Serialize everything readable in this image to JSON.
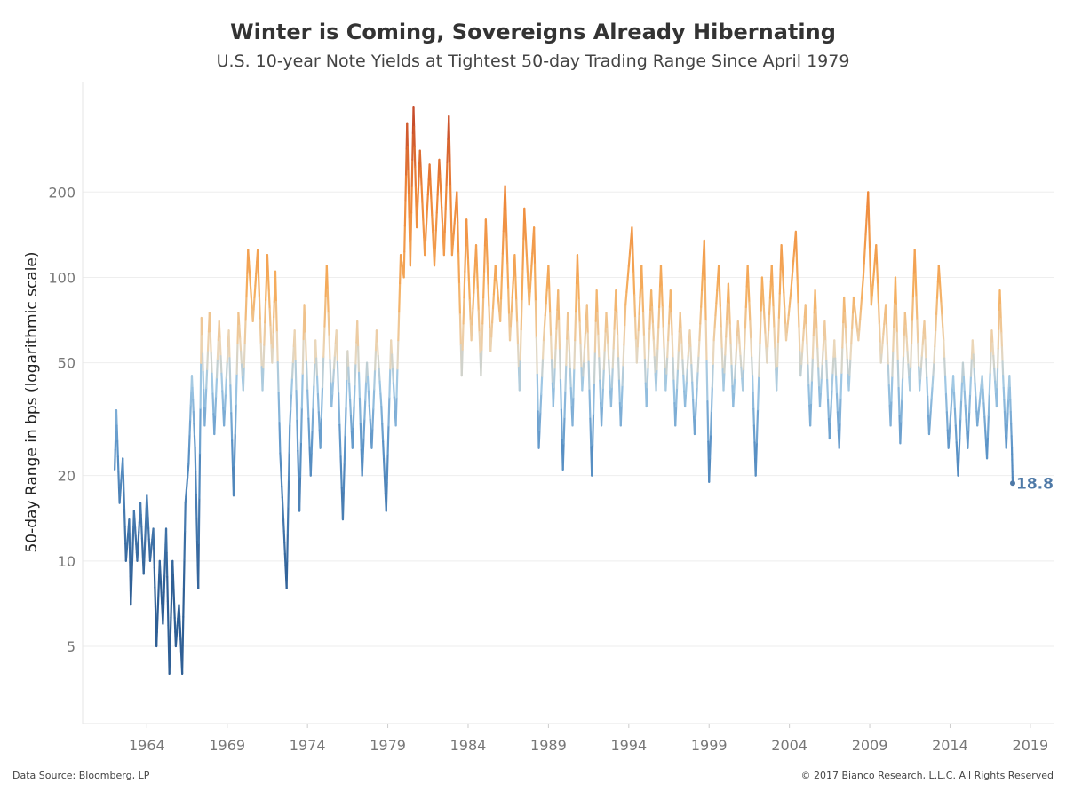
{
  "title": "Winter is Coming, Sovereigns Already Hibernating",
  "subtitle": "U.S. 10-year Note Yields at Tightest 50-day Trading Range Since April 1979",
  "footer": {
    "source": "Data Source: Bloomberg, LP",
    "copyright": "© 2017 Bianco Research, L.L.C. All Rights Reserved"
  },
  "chart_data": {
    "type": "line",
    "title": "Winter is Coming, Sovereigns Already Hibernating",
    "subtitle": "U.S. 10-year Note Yields at Tightest 50-day Trading Range Since April 1979",
    "xlabel": "",
    "ylabel": "50-day Range in bps (logarithmic scale)",
    "y_scale": "log",
    "xlim": [
      1960,
      2020.5
    ],
    "ylim": [
      2.67,
      490
    ],
    "grid": true,
    "x_ticks": [
      "1964",
      "1969",
      "1974",
      "1979",
      "1984",
      "1989",
      "1994",
      "1999",
      "2004",
      "2009",
      "2014",
      "2019"
    ],
    "y_ticks": [
      "5",
      "10",
      "20",
      "50",
      "100",
      "200"
    ],
    "color_scale": {
      "low": "#2f5f95",
      "mid_low": "#8fbddf",
      "mid": "#ead8bd",
      "mid_high": "#f5ae5e",
      "high": "#c2452a"
    },
    "end_label": "18.8",
    "series": [
      {
        "x": [
          1962.0,
          1962.1,
          1962.3,
          1962.5,
          1962.7,
          1962.9,
          1963.0,
          1963.2,
          1963.4,
          1963.6,
          1963.8,
          1964.0,
          1964.2,
          1964.4,
          1964.6,
          1964.8,
          1965.0,
          1965.2,
          1965.4,
          1965.6,
          1965.8,
          1966.0,
          1966.2,
          1966.4,
          1966.6,
          1966.8,
          1967.0,
          1967.2,
          1967.4,
          1967.6,
          1967.9,
          1968.2,
          1968.5,
          1968.8,
          1969.1,
          1969.4,
          1969.7,
          1970.0,
          1970.3,
          1970.6,
          1970.9,
          1971.2,
          1971.5,
          1971.8,
          1972.0,
          1972.3,
          1972.5,
          1972.7,
          1972.9,
          1973.2,
          1973.5,
          1973.8,
          1974.2,
          1974.5,
          1974.8,
          1975.2,
          1975.5,
          1975.8,
          1976.2,
          1976.5,
          1976.8,
          1977.1,
          1977.4,
          1977.7,
          1978.0,
          1978.3,
          1978.6,
          1978.9,
          1979.2,
          1979.5,
          1979.8,
          1980.0,
          1980.2,
          1980.4,
          1980.6,
          1980.8,
          1981.0,
          1981.3,
          1981.6,
          1981.9,
          1982.2,
          1982.5,
          1982.8,
          1983.0,
          1983.3,
          1983.6,
          1983.9,
          1984.2,
          1984.5,
          1984.8,
          1985.1,
          1985.4,
          1985.7,
          1986.0,
          1986.3,
          1986.6,
          1986.9,
          1987.2,
          1987.5,
          1987.8,
          1988.1,
          1988.4,
          1988.7,
          1989.0,
          1989.3,
          1989.6,
          1989.9,
          1990.2,
          1990.5,
          1990.8,
          1991.1,
          1991.4,
          1991.7,
          1992.0,
          1992.3,
          1992.6,
          1992.9,
          1993.2,
          1993.5,
          1993.8,
          1994.2,
          1994.5,
          1994.8,
          1995.1,
          1995.4,
          1995.7,
          1996.0,
          1996.3,
          1996.6,
          1996.9,
          1997.2,
          1997.5,
          1997.8,
          1998.1,
          1998.4,
          1998.7,
          1999.0,
          1999.3,
          1999.6,
          1999.9,
          2000.2,
          2000.5,
          2000.8,
          2001.1,
          2001.4,
          2001.7,
          2001.9,
          2002.3,
          2002.6,
          2002.9,
          2003.2,
          2003.5,
          2003.8,
          2004.1,
          2004.4,
          2004.7,
          2005.0,
          2005.3,
          2005.6,
          2005.9,
          2006.2,
          2006.5,
          2006.8,
          2007.1,
          2007.4,
          2007.7,
          2008.0,
          2008.3,
          2008.6,
          2008.9,
          2009.1,
          2009.4,
          2009.7,
          2010.0,
          2010.3,
          2010.6,
          2010.9,
          2011.2,
          2011.5,
          2011.8,
          2012.1,
          2012.4,
          2012.7,
          2013.0,
          2013.3,
          2013.6,
          2013.9,
          2014.2,
          2014.5,
          2014.8,
          2015.1,
          2015.4,
          2015.7,
          2016.0,
          2016.3,
          2016.6,
          2016.9,
          2017.1,
          2017.3,
          2017.5,
          2017.7,
          2017.85,
          2017.9
        ],
        "y": [
          21,
          34,
          16,
          23,
          10,
          14,
          7,
          15,
          10,
          16,
          9,
          17,
          10,
          13,
          5,
          10,
          6,
          13,
          4,
          10,
          5,
          7,
          4,
          16,
          22,
          45,
          25,
          8,
          72,
          30,
          75,
          28,
          70,
          30,
          65,
          17,
          75,
          40,
          125,
          70,
          125,
          40,
          120,
          50,
          105,
          24,
          14,
          8,
          30,
          65,
          15,
          80,
          20,
          60,
          25,
          110,
          35,
          65,
          14,
          55,
          25,
          70,
          20,
          50,
          25,
          65,
          35,
          15,
          60,
          30,
          120,
          100,
          350,
          110,
          400,
          150,
          280,
          120,
          250,
          110,
          260,
          120,
          370,
          120,
          200,
          45,
          160,
          60,
          130,
          45,
          160,
          55,
          110,
          70,
          210,
          60,
          120,
          40,
          175,
          80,
          150,
          25,
          60,
          110,
          35,
          90,
          21,
          75,
          30,
          120,
          40,
          80,
          20,
          90,
          30,
          75,
          35,
          90,
          30,
          80,
          150,
          50,
          110,
          35,
          90,
          40,
          110,
          40,
          90,
          30,
          75,
          35,
          65,
          28,
          60,
          135,
          19,
          60,
          110,
          40,
          95,
          35,
          70,
          40,
          110,
          45,
          20,
          100,
          50,
          110,
          40,
          130,
          60,
          90,
          145,
          45,
          80,
          30,
          90,
          35,
          70,
          27,
          60,
          25,
          85,
          40,
          85,
          60,
          100,
          200,
          80,
          130,
          50,
          80,
          30,
          100,
          26,
          75,
          40,
          125,
          40,
          70,
          28,
          50,
          110,
          60,
          25,
          45,
          20,
          50,
          25,
          60,
          30,
          45,
          23,
          65,
          35,
          90,
          45,
          25,
          45,
          25,
          18.8
        ]
      }
    ]
  }
}
